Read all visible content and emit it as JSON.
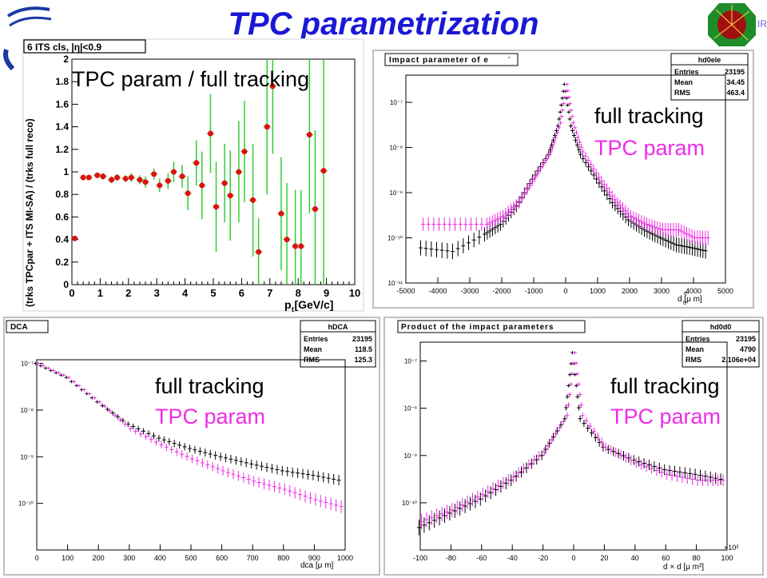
{
  "title": "TPC parametrization",
  "colors": {
    "title": "#1a18d6",
    "full": "#000000",
    "tpc": "#ee2ce8",
    "ratio_marker": "#e01010",
    "ratio_err": "#33cc33"
  },
  "labels": {
    "p1_overlay": "TPC param / full tracking",
    "full": "full tracking",
    "tpc": "TPC param"
  },
  "chart_data": [
    {
      "type": "scatter",
      "title": "6 ITS cls, |η|<0.9",
      "ylabel": "(trks TPCpar + ITS MI-SA) / (trks full reco)",
      "xlabel": "p  [GeV/c]",
      "xlabel_sub": "t",
      "xlim": [
        0,
        10
      ],
      "ylim": [
        0,
        2
      ],
      "xticks": [
        "0",
        "1",
        "2",
        "3",
        "4",
        "5",
        "6",
        "7",
        "8",
        "9",
        "10"
      ],
      "yticks": [
        "0",
        "0.2",
        "0.4",
        "0.6",
        "0.8",
        "1",
        "1.2",
        "1.4",
        "1.6",
        "1.8",
        "2"
      ],
      "series": [
        {
          "x": [
            0.1,
            0.4,
            0.6,
            0.9,
            1.1,
            1.4,
            1.6,
            1.9,
            2.1,
            2.4,
            2.6,
            2.9,
            3.1,
            3.4,
            3.6,
            3.9,
            4.1,
            4.4,
            4.6,
            4.9,
            5.1,
            5.4,
            5.6,
            5.9,
            6.1,
            6.4,
            6.6,
            6.9,
            7.1,
            7.4,
            7.6,
            7.9,
            8.1,
            8.4,
            8.6,
            8.9,
            9.1,
            9.4,
            9.6,
            9.9
          ],
          "y": [
            0.41,
            0.95,
            0.95,
            0.97,
            0.96,
            0.93,
            0.95,
            0.94,
            0.95,
            0.93,
            0.91,
            0.98,
            0.88,
            0.92,
            1.0,
            0.96,
            0.81,
            1.08,
            0.88,
            1.34,
            0.69,
            0.9,
            0.79,
            1.0,
            1.18,
            0.75,
            0.29,
            1.4,
            1.76,
            0.63,
            0.4,
            0.34,
            0.34,
            1.33,
            0.67,
            1.01,
            null,
            null,
            null,
            null
          ],
          "err": [
            0.02,
            0.02,
            0.02,
            0.02,
            0.03,
            0.03,
            0.03,
            0.03,
            0.04,
            0.04,
            0.05,
            0.05,
            0.06,
            0.07,
            0.09,
            0.1,
            0.15,
            0.2,
            0.3,
            0.35,
            0.4,
            0.35,
            0.4,
            0.45,
            0.45,
            0.5,
            0.3,
            0.6,
            0.6,
            0.5,
            0.5,
            0.5,
            0.5,
            0.7,
            0.7,
            1.0,
            null,
            null,
            null,
            null
          ]
        }
      ]
    },
    {
      "type": "scatter",
      "title": "Impact parameter of e",
      "title_sup": "-",
      "stats": {
        "name": "hd0ele",
        "rows": [
          [
            "Entries",
            "23195"
          ],
          [
            "Mean",
            "34.45"
          ],
          [
            "RMS",
            "463.4"
          ]
        ]
      },
      "xlabel": "d   [μ m]",
      "xlabel_sub": "0",
      "xlabel_sup": "e-",
      "xlim": [
        -5000,
        5000
      ],
      "ylog": true,
      "ylim": [
        1e-11,
        4e-07
      ],
      "xticks": [
        "-5000",
        "-4000",
        "-3000",
        "-2000",
        "-1000",
        "0",
        "1000",
        "2000",
        "3000",
        "4000",
        "5000"
      ],
      "yticks": [
        "10⁻¹¹",
        "10⁻¹⁰",
        "10⁻⁹",
        "10⁻⁸",
        "10⁻⁷"
      ],
      "series": [
        {
          "name": "full tracking",
          "x": [
            -4500,
            -3500,
            -2500,
            -2000,
            -1500,
            -1000,
            -500,
            -200,
            0,
            200,
            500,
            1000,
            1500,
            2000,
            2500,
            3000,
            3500,
            4000,
            4500
          ],
          "y": [
            6e-11,
            5e-11,
            1.2e-10,
            2e-10,
            5e-10,
            2e-09,
            7e-09,
            3e-08,
            2.5e-07,
            3e-08,
            7e-09,
            2e-09,
            6e-10,
            2.5e-10,
            1.5e-10,
            1e-10,
            7e-11,
            6e-11,
            5e-11
          ]
        },
        {
          "name": "TPC param",
          "x": [
            -4500,
            -3500,
            -2500,
            -2000,
            -1500,
            -1000,
            -500,
            -200,
            0,
            200,
            500,
            1000,
            1500,
            2000,
            2500,
            3000,
            3500,
            4000,
            4500
          ],
          "y": [
            2e-10,
            2e-10,
            2e-10,
            3e-10,
            6e-10,
            2.2e-09,
            8e-09,
            3.5e-08,
            2.5e-07,
            3.5e-08,
            8e-09,
            2.2e-09,
            7e-10,
            3e-10,
            2e-10,
            1.5e-10,
            1.5e-10,
            1e-10,
            1e-10
          ]
        }
      ]
    },
    {
      "type": "scatter",
      "title": "DCA",
      "stats": {
        "name": "hDCA",
        "rows": [
          [
            "Entries",
            "23195"
          ],
          [
            "Mean",
            "118.5"
          ],
          [
            "RMS",
            "125.3"
          ]
        ]
      },
      "xlabel": "dca [μ m]",
      "xlim": [
        0,
        1000
      ],
      "ylog": true,
      "ylim": [
        1e-11,
        1.2e-07
      ],
      "xticks": [
        "0",
        "100",
        "200",
        "300",
        "400",
        "500",
        "600",
        "700",
        "800",
        "900",
        "1000"
      ],
      "yticks": [
        "10⁻¹⁰",
        "10⁻⁹",
        "10⁻⁸",
        "10⁻⁷"
      ],
      "series": [
        {
          "name": "full tracking",
          "x": [
            0,
            100,
            200,
            300,
            400,
            500,
            600,
            700,
            800,
            900,
            1000
          ],
          "y": [
            1e-07,
            5e-08,
            1.5e-08,
            5e-09,
            2.5e-09,
            1.5e-09,
            1e-09,
            7e-10,
            5e-10,
            4e-10,
            3e-10
          ]
        },
        {
          "name": "TPC param",
          "x": [
            0,
            100,
            200,
            300,
            400,
            500,
            600,
            700,
            800,
            900,
            1000
          ],
          "y": [
            1e-07,
            5e-08,
            1.5e-08,
            4e-09,
            1.8e-09,
            9e-10,
            5e-10,
            3e-10,
            2e-10,
            1.2e-10,
            8e-11
          ]
        }
      ]
    },
    {
      "type": "scatter",
      "title": "Product of the impact parameters",
      "stats": {
        "name": "hd0d0",
        "rows": [
          [
            "Entries",
            "23195"
          ],
          [
            "Mean",
            "4790"
          ],
          [
            "RMS",
            "2.106e+04"
          ]
        ]
      },
      "xlabel": "d   × d   [μ m²]",
      "x_multiplier": "×10³",
      "xlim": [
        -100,
        100
      ],
      "ylog": true,
      "ylim": [
        1e-11,
        2.5e-07
      ],
      "xticks": [
        "-100",
        "-80",
        "-60",
        "-40",
        "-20",
        "0",
        "20",
        "40",
        "60",
        "80",
        "100"
      ],
      "yticks": [
        "10⁻¹⁰",
        "10⁻⁹",
        "10⁻⁸",
        "10⁻⁷"
      ],
      "series": [
        {
          "name": "full tracking",
          "x": [
            -100,
            -80,
            -60,
            -40,
            -20,
            -5,
            0,
            5,
            20,
            40,
            60,
            80,
            100
          ],
          "y": [
            3e-11,
            6e-11,
            1.2e-10,
            3e-10,
            1e-09,
            6e-09,
            1.5e-07,
            6e-09,
            1.5e-09,
            8e-10,
            5e-10,
            4e-10,
            3e-10
          ]
        },
        {
          "name": "TPC param",
          "x": [
            -100,
            -80,
            -60,
            -40,
            -20,
            -5,
            0,
            5,
            20,
            40,
            60,
            80,
            100
          ],
          "y": [
            4e-11,
            7e-11,
            1.5e-10,
            3.5e-10,
            1.2e-09,
            7e-09,
            1.5e-07,
            7e-09,
            1.5e-09,
            7e-10,
            4e-10,
            3e-10,
            3e-10
          ]
        }
      ]
    }
  ]
}
